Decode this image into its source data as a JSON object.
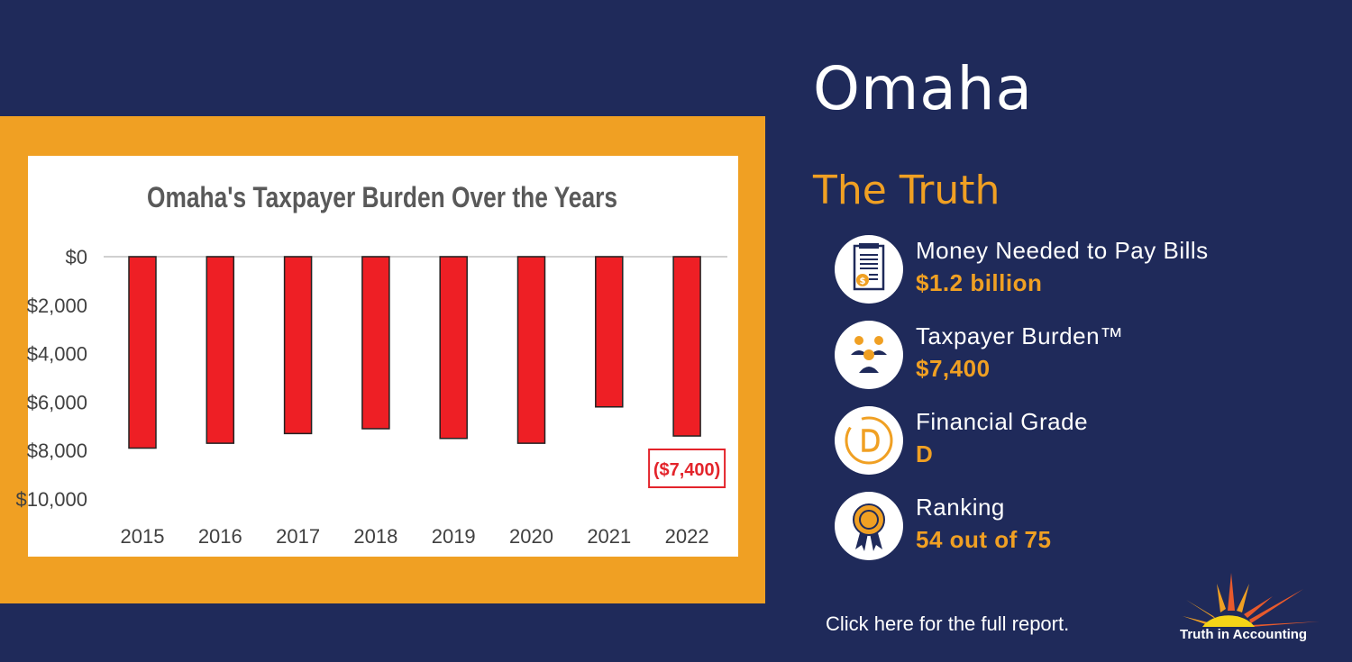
{
  "city": "Omaha",
  "section_title": "The Truth",
  "stats": [
    {
      "label": "Money Needed to Pay Bills",
      "value": "$1.2 billion",
      "icon": "bill-receipt-icon"
    },
    {
      "label": "Taxpayer Burden™",
      "value": "$7,400",
      "icon": "taxpayers-icon"
    },
    {
      "label": "Financial Grade",
      "value": "D",
      "icon": "grade-d-icon"
    },
    {
      "label": "Ranking",
      "value": "54 out of 75",
      "icon": "award-ribbon-icon"
    }
  ],
  "report_link": "Click here for the full report.",
  "logo_text": "Truth in Accounting",
  "colors": {
    "background": "#1f2a5a",
    "accent": "#f0a023",
    "bar": "#ee1f25",
    "callout": "#e3242b"
  },
  "chart_data": {
    "type": "bar",
    "title": "Omaha's Taxpayer Burden Over the Years",
    "categories": [
      "2015",
      "2016",
      "2017",
      "2018",
      "2019",
      "2020",
      "2021",
      "2022"
    ],
    "values": [
      -7900,
      -7700,
      -7300,
      -7100,
      -7500,
      -7700,
      -6200,
      -7400
    ],
    "ylim": [
      -10000,
      0
    ],
    "yticks": [
      0,
      -2000,
      -4000,
      -6000,
      -8000,
      -10000
    ],
    "ytick_labels": [
      "$0",
      "$2,000",
      "$4,000",
      "$6,000",
      "$8,000",
      "$10,000"
    ],
    "callout": "($7,400)",
    "grid": false
  }
}
